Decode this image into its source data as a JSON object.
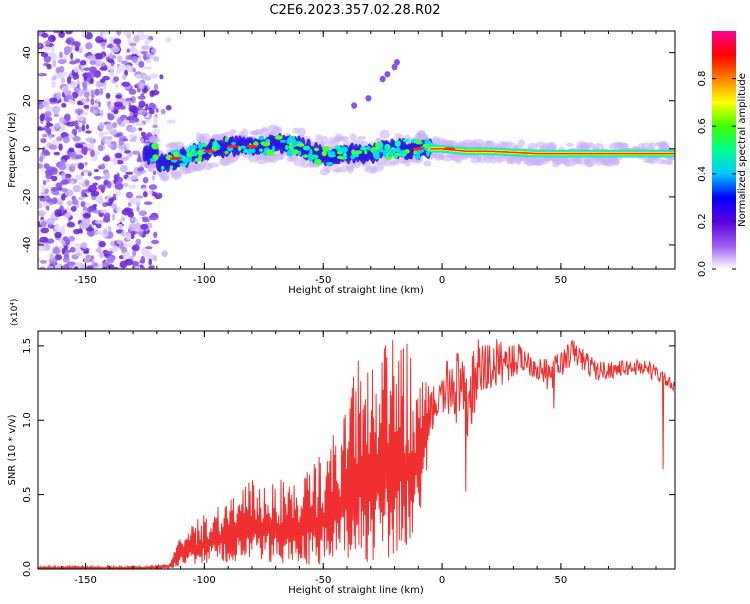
{
  "figure": {
    "title": "C2E6.2023.357.02.28.R02"
  },
  "chart_data": [
    {
      "type": "heatmap",
      "xlabel": "Height of straight line (km)",
      "ylabel": "Frequency (Hz)",
      "xlim": [
        -170,
        98
      ],
      "ylim": [
        -50,
        49
      ],
      "xticks": [
        -150,
        -100,
        -50,
        0,
        50
      ],
      "yticks": [
        -40,
        -20,
        0,
        20,
        40
      ],
      "colorbar": {
        "label": "Normalized spectral amplitude",
        "range": [
          0,
          1
        ],
        "ticks": [
          0.0,
          0.2,
          0.4,
          0.6,
          0.8
        ],
        "colors": [
          "#ffffff",
          "#9b59f0",
          "#5a00e0",
          "#0000ff",
          "#00c8ff",
          "#00ff90",
          "#40ff00",
          "#ffff00",
          "#ff8000",
          "#ff0000",
          "#ff0090"
        ]
      },
      "ridge": [
        {
          "x": -120,
          "y": -6
        },
        {
          "x": -110,
          "y": -4
        },
        {
          "x": -100,
          "y": -1
        },
        {
          "x": -90,
          "y": 1
        },
        {
          "x": -80,
          "y": 1
        },
        {
          "x": -70,
          "y": 2
        },
        {
          "x": -60,
          "y": 1
        },
        {
          "x": -50,
          "y": -3
        },
        {
          "x": -40,
          "y": -2
        },
        {
          "x": -30,
          "y": -2
        },
        {
          "x": -20,
          "y": 0
        },
        {
          "x": -10,
          "y": 0
        },
        {
          "x": 0,
          "y": 0
        },
        {
          "x": 10,
          "y": -1
        },
        {
          "x": 20,
          "y": -1
        },
        {
          "x": 40,
          "y": -2
        },
        {
          "x": 60,
          "y": -2
        },
        {
          "x": 80,
          "y": -2
        },
        {
          "x": 98,
          "y": -2
        }
      ],
      "feature_points": [
        {
          "x": -37,
          "y": 18
        },
        {
          "x": -31,
          "y": 21
        },
        {
          "x": -25,
          "y": 29
        },
        {
          "x": -23,
          "y": 31
        },
        {
          "x": -20,
          "y": 34
        },
        {
          "x": -19,
          "y": 36
        }
      ]
    },
    {
      "type": "line",
      "xlabel": "Height of straight line (km)",
      "ylabel": "SNR (10 * v/v)",
      "exponent": "(x10⁴)",
      "xlim": [
        -170,
        98
      ],
      "ylim": [
        0,
        1.6
      ],
      "xticks": [
        -150,
        -100,
        -50,
        0,
        50
      ],
      "yticks": [
        0.0,
        0.5,
        1.0,
        1.5
      ],
      "series": [
        {
          "color": "#f03030",
          "envelope": [
            {
              "x": -170,
              "lo": 0.0,
              "hi": 0.02
            },
            {
              "x": -125,
              "lo": 0.0,
              "hi": 0.02
            },
            {
              "x": -115,
              "lo": 0.0,
              "hi": 0.04
            },
            {
              "x": -110,
              "lo": 0.02,
              "hi": 0.22
            },
            {
              "x": -100,
              "lo": 0.03,
              "hi": 0.38
            },
            {
              "x": -90,
              "lo": 0.03,
              "hi": 0.5
            },
            {
              "x": -80,
              "lo": 0.04,
              "hi": 0.6
            },
            {
              "x": -70,
              "lo": 0.03,
              "hi": 0.62
            },
            {
              "x": -60,
              "lo": 0.03,
              "hi": 0.6
            },
            {
              "x": -50,
              "lo": 0.02,
              "hi": 0.8
            },
            {
              "x": -40,
              "lo": 0.03,
              "hi": 1.1
            },
            {
              "x": -35,
              "lo": 0.03,
              "hi": 1.47
            },
            {
              "x": -30,
              "lo": 0.05,
              "hi": 1.35
            },
            {
              "x": -20,
              "lo": 0.05,
              "hi": 1.6
            },
            {
              "x": -10,
              "lo": 0.2,
              "hi": 1.45
            },
            {
              "x": -5,
              "lo": 0.8,
              "hi": 1.2
            },
            {
              "x": 0,
              "lo": 0.9,
              "hi": 1.3
            },
            {
              "x": 5,
              "lo": 0.75,
              "hi": 1.55
            },
            {
              "x": 10,
              "lo": 0.55,
              "hi": 1.35
            },
            {
              "x": 15,
              "lo": 0.9,
              "hi": 1.55
            },
            {
              "x": 25,
              "lo": 1.1,
              "hi": 1.55
            },
            {
              "x": 35,
              "lo": 1.25,
              "hi": 1.5
            },
            {
              "x": 45,
              "lo": 1.1,
              "hi": 1.4
            },
            {
              "x": 55,
              "lo": 1.3,
              "hi": 1.55
            },
            {
              "x": 65,
              "lo": 1.2,
              "hi": 1.4
            },
            {
              "x": 75,
              "lo": 1.25,
              "hi": 1.4
            },
            {
              "x": 85,
              "lo": 1.25,
              "hi": 1.42
            },
            {
              "x": 92,
              "lo": 1.2,
              "hi": 1.35
            },
            {
              "x": 98,
              "lo": 1.15,
              "hi": 1.25
            }
          ],
          "spikes": [
            {
              "x": 93,
              "y": 0.67
            },
            {
              "x": 10,
              "y": 0.52
            },
            {
              "x": 47,
              "y": 1.08
            }
          ]
        }
      ]
    }
  ]
}
